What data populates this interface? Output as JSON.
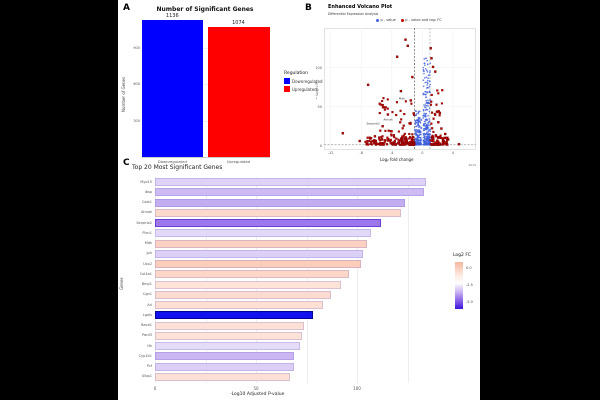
{
  "panel_letters": {
    "a": "A",
    "b": "B",
    "c": "C"
  },
  "chart_data": [
    {
      "type": "bar",
      "panel": "A",
      "title": "Number of Significant Genes",
      "ylabel": "Number of Genes",
      "categories": [
        "Downregulated",
        "Upregulated"
      ],
      "values": [
        1136,
        1074
      ],
      "value_labels": [
        "1136",
        "1074"
      ],
      "colors": [
        "#0000ff",
        "#ff0000"
      ],
      "yticks": [
        300,
        600,
        900
      ],
      "ylim": [
        0,
        1200
      ],
      "legend": {
        "title": "Regulation",
        "items": [
          {
            "label": "Downregulated",
            "color": "#0000ff"
          },
          {
            "label": "Upregulated",
            "color": "#ff0000"
          }
        ]
      }
    },
    {
      "type": "scatter",
      "subtype": "volcano",
      "panel": "B",
      "title": "Enhanced Volcano Plot",
      "subtitle": "Differential Expression Analysis",
      "xlabel": "Log₂ fold change",
      "ylabel": "− Log₁₀ P",
      "caption": "2019",
      "xlim": [
        -12.87,
        6.9
      ],
      "ylim": [
        0,
        151
      ],
      "xticks": [
        -12,
        -8,
        -4,
        0,
        4
      ],
      "yticks": [
        0,
        50,
        100
      ],
      "fc_cutoffs": [
        -1,
        1
      ],
      "p_cutoff": 1.3,
      "legend": [
        {
          "label": "p - value",
          "color": "#3f5fdd"
        },
        {
          "label": "p - value and log₂ FC",
          "color": "#c00000"
        }
      ],
      "clusters": [
        {
          "series": "p-value",
          "color": "#3f5fdd",
          "shape": "circle",
          "n": 170,
          "fc": [
            -1.0,
            -0.12
          ],
          "p": [
            1.3,
            45
          ],
          "pow": 2.6
        },
        {
          "series": "p-value",
          "color": "#3f5fdd",
          "shape": "circle",
          "n": 300,
          "fc": [
            0.12,
            1.05
          ],
          "p": [
            1.3,
            113
          ],
          "pow": 3.2
        },
        {
          "series": "p-value and log2 FC",
          "color": "#c00000",
          "shape": "rect",
          "n": 170,
          "fc": [
            -7.6,
            -1.05
          ],
          "p": [
            1.3,
            11
          ],
          "pow": 2.2,
          "fc_bias": 2.0
        },
        {
          "series": "p-value and log2 FC",
          "color": "#c00000",
          "shape": "rect",
          "n": 80,
          "fc": [
            1.05,
            3.3
          ],
          "p": [
            1.3,
            11
          ],
          "pow": 2.2
        },
        {
          "series": "p-value and log2 FC",
          "color": "#c00000",
          "shape": "rect",
          "n": 45,
          "fc": [
            -5.6,
            -1.05
          ],
          "p": [
            11,
            62
          ],
          "pow": 1.6
        },
        {
          "series": "p-value and log2 FC",
          "color": "#c00000",
          "shape": "rect",
          "n": 26,
          "fc": [
            1.05,
            2.7
          ],
          "p": [
            11,
            72
          ],
          "pow": 1.6
        }
      ],
      "notable_points": [
        [
          -10.4,
          16
        ],
        [
          -7.1,
          78
        ],
        [
          -2.2,
          136
        ],
        [
          -1.9,
          128
        ],
        [
          1.1,
          125
        ],
        [
          -3.3,
          114
        ],
        [
          1.2,
          112
        ],
        [
          1.4,
          101
        ],
        [
          1.7,
          95
        ],
        [
          -1.3,
          88
        ],
        [
          -2.8,
          70
        ],
        [
          -1.5,
          58
        ],
        [
          -4.5,
          40
        ],
        [
          2.3,
          42
        ],
        [
          2.1,
          30
        ],
        [
          -5.2,
          25
        ],
        [
          2.5,
          22
        ],
        [
          -6.2,
          12
        ],
        [
          3.0,
          15
        ],
        [
          4.8,
          2
        ],
        [
          -8.2,
          6
        ],
        [
          3.4,
          8
        ]
      ],
      "point_labels": [
        {
          "text": "Serpinb2",
          "fc": -5.3,
          "p": 26
        },
        {
          "text": "Ahnak",
          "fc": -3.6,
          "p": 31
        },
        {
          "text": "Mdk",
          "fc": -2.0,
          "p": 58
        }
      ]
    },
    {
      "type": "bar",
      "orientation": "horizontal",
      "panel": "C",
      "title": "Top 20 Most Significant Genes",
      "xlabel": "-Log10 Adjusted P-value",
      "ylabel": "Genes",
      "xticks": [
        0,
        50,
        100
      ],
      "xlim": [
        0,
        144
      ],
      "legend": {
        "title": "Log2 FC",
        "ticks": [
          "0.0",
          "-2.5",
          "-5.0"
        ]
      },
      "genes": [
        {
          "name": "Myo15",
          "value": 134,
          "log2fc": -1.2,
          "color": "#ded2f7"
        },
        {
          "name": "Ibsp",
          "value": 133,
          "log2fc": -1.8,
          "color": "#cdbcf3"
        },
        {
          "name": "Cast1",
          "value": 124,
          "log2fc": -2.2,
          "color": "#c2adf0"
        },
        {
          "name": "Ahnak",
          "value": 122,
          "log2fc": 0.8,
          "color": "#fcd9ca"
        },
        {
          "name": "Serpinb2",
          "value": 112,
          "log2fc": -3.5,
          "color": "#9d77ec"
        },
        {
          "name": "Plxn1",
          "value": 107,
          "log2fc": -0.9,
          "color": "#e2d8f8"
        },
        {
          "name": "Mdk",
          "value": 105,
          "log2fc": 1.0,
          "color": "#fbd2c1"
        },
        {
          "name": "Jph",
          "value": 103,
          "log2fc": -1.1,
          "color": "#dcd0f6"
        },
        {
          "name": "Ucp2",
          "value": 102,
          "log2fc": 1.3,
          "color": "#fbcdbb"
        },
        {
          "name": "Col4a1",
          "value": 96,
          "log2fc": 0.9,
          "color": "#fcd7c7"
        },
        {
          "name": "Bmp1",
          "value": 92,
          "log2fc": 0.4,
          "color": "#fde3d8"
        },
        {
          "name": "Cgn1",
          "value": 87,
          "log2fc": 0.7,
          "color": "#fcdcd0"
        },
        {
          "name": "Arl",
          "value": 83,
          "log2fc": 0.5,
          "color": "#fddfd3"
        },
        {
          "name": "Lgals",
          "value": 78,
          "log2fc": -5.0,
          "color": "#1111ee"
        },
        {
          "name": "Bace1",
          "value": 74,
          "log2fc": 0.6,
          "color": "#fde1d6"
        },
        {
          "name": "Pard3",
          "value": 73,
          "log2fc": 0.5,
          "color": "#fde2d8"
        },
        {
          "name": "Hk",
          "value": 72,
          "log2fc": -0.8,
          "color": "#e5dcf8"
        },
        {
          "name": "Cyp1b1",
          "value": 69,
          "log2fc": -2.0,
          "color": "#c9b6f2"
        },
        {
          "name": "Pcf",
          "value": 69,
          "log2fc": -1.0,
          "color": "#dbcff6"
        },
        {
          "name": "Ulbp1",
          "value": 67,
          "log2fc": 0.6,
          "color": "#fde0d5"
        }
      ]
    }
  ]
}
